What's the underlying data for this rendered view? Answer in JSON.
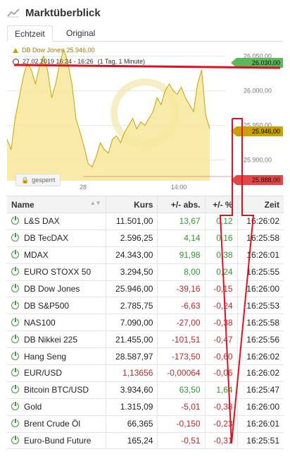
{
  "header": {
    "title": "Marktüberblick",
    "icon": "chart-line-icon"
  },
  "tabs": [
    {
      "label": "Echtzeit",
      "active": true
    },
    {
      "label": "Original",
      "active": false
    }
  ],
  "chart": {
    "legend_series": "DB Dow Jones",
    "legend_value": "25.946,00",
    "legend_range": "27.02.2019 16:24 - 16:26",
    "legend_interval": "(1 Tag, 1 Minute)",
    "locked_label": "gesperrt",
    "price_tags": {
      "high": "26.030,00",
      "current": "25.946,00",
      "low": "25.888,00"
    },
    "colors": {
      "area": "#f7e79a",
      "line": "#c9a200",
      "high": "#5cb85c",
      "current": "#c9a200",
      "low": "#e04848"
    }
  },
  "chart_data": {
    "type": "area",
    "title": "",
    "xlabel": "",
    "ylabel": "",
    "x_ticks": [
      "28",
      "14:00"
    ],
    "y_ticks": [
      26050,
      26000,
      25950,
      25900
    ],
    "y_tick_labels": [
      "26.050,00",
      "26.000,00",
      "25.950,00",
      "25.900,00"
    ],
    "ylim": [
      25870,
      26070
    ],
    "grid": true,
    "x": [
      0,
      1,
      2,
      3,
      4,
      5,
      6,
      7,
      8,
      9,
      10,
      11,
      12,
      13,
      14,
      15,
      16,
      17,
      18,
      19,
      20,
      21,
      22,
      23,
      24,
      25,
      26,
      27,
      28,
      29,
      30,
      31,
      32,
      33,
      34,
      35,
      36,
      37,
      38,
      39,
      40,
      41,
      42,
      43,
      44,
      45,
      46,
      47,
      48,
      49,
      50
    ],
    "series": [
      {
        "values": [
          25930,
          25915,
          25960,
          25990,
          26020,
          26040,
          26030,
          26010,
          26035,
          26050,
          26030,
          25990,
          26010,
          26040,
          26060,
          26040,
          26010,
          25960,
          25940,
          25920,
          25895,
          25890,
          25905,
          25925,
          25915,
          25910,
          25930,
          25935,
          25925,
          25940,
          25950,
          25960,
          25945,
          25955,
          25950,
          25960,
          25970,
          25990,
          25980,
          26000,
          26010,
          26000,
          25995,
          26005,
          25990,
          25980,
          25970,
          26010,
          26030,
          25965,
          25945
        ]
      }
    ]
  },
  "table": {
    "columns": [
      "Name",
      "Kurs",
      "+/- abs.",
      "+/- %",
      "Zeit"
    ],
    "rows": [
      {
        "name": "L&S DAX",
        "kurs": "11.501,00",
        "abs": "13,67",
        "pct": "0,12",
        "zeit": "16:26:02",
        "kurs_neg": false,
        "dir": "pos"
      },
      {
        "name": "DB TecDAX",
        "kurs": "2.596,25",
        "abs": "4,14",
        "pct": "0,16",
        "zeit": "16:25:58",
        "kurs_neg": false,
        "dir": "pos"
      },
      {
        "name": "MDAX",
        "kurs": "24.343,00",
        "abs": "91,98",
        "pct": "0,38",
        "zeit": "16:26:01",
        "kurs_neg": false,
        "dir": "pos"
      },
      {
        "name": "EURO STOXX 50",
        "kurs": "3.294,50",
        "abs": "8,00",
        "pct": "0,24",
        "zeit": "16:25:55",
        "kurs_neg": false,
        "dir": "pos"
      },
      {
        "name": "DB Dow Jones",
        "kurs": "25.946,00",
        "abs": "-39,16",
        "pct": "-0,15",
        "zeit": "16:26:00",
        "kurs_neg": false,
        "dir": "neg"
      },
      {
        "name": "DB S&P500",
        "kurs": "2.785,75",
        "abs": "-6,63",
        "pct": "-0,24",
        "zeit": "16:25:53",
        "kurs_neg": false,
        "dir": "neg"
      },
      {
        "name": "NAS100",
        "kurs": "7.090,00",
        "abs": "-27,00",
        "pct": "-0,38",
        "zeit": "16:25:58",
        "kurs_neg": false,
        "dir": "neg"
      },
      {
        "name": "DB Nikkei 225",
        "kurs": "21.455,00",
        "abs": "-101,51",
        "pct": "-0,47",
        "zeit": "16:25:56",
        "kurs_neg": false,
        "dir": "neg"
      },
      {
        "name": "Hang Seng",
        "kurs": "28.587,97",
        "abs": "-173,50",
        "pct": "-0,60",
        "zeit": "16:26:02",
        "kurs_neg": false,
        "dir": "neg"
      },
      {
        "name": "EUR/USD",
        "kurs": "1,13656",
        "abs": "-0,00064",
        "pct": "-0,06",
        "zeit": "16:26:02",
        "kurs_neg": true,
        "dir": "neg"
      },
      {
        "name": "Bitcoin BTC/USD",
        "kurs": "3.934,60",
        "abs": "63,50",
        "pct": "1,64",
        "zeit": "16:25:47",
        "kurs_neg": false,
        "dir": "pos"
      },
      {
        "name": "Gold",
        "kurs": "1.315,09",
        "abs": "-5,01",
        "pct": "-0,38",
        "zeit": "16:26:00",
        "kurs_neg": false,
        "dir": "neg"
      },
      {
        "name": "Brent Crude Öl",
        "kurs": "66,365",
        "abs": "-0,150",
        "pct": "-0,23",
        "zeit": "16:26:01",
        "kurs_neg": false,
        "dir": "neg"
      },
      {
        "name": "Euro-Bund Future",
        "kurs": "165,24",
        "abs": "-0,51",
        "pct": "-0,31",
        "zeit": "16:25:51",
        "kurs_neg": false,
        "dir": "neg"
      }
    ]
  }
}
